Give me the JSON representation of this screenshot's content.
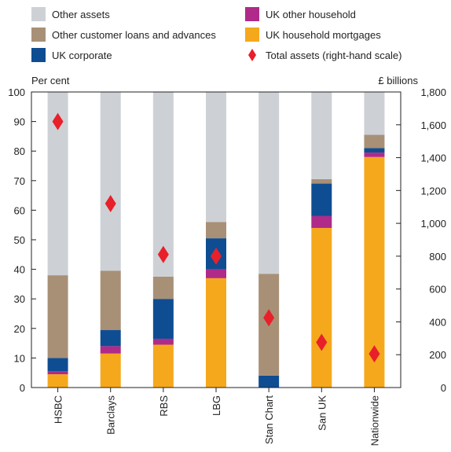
{
  "chart_data": {
    "type": "bar",
    "stacked": true,
    "categories": [
      "HSBC",
      "Barclays",
      "RBS",
      "LBG",
      "Stan Chart",
      "San UK",
      "Nationwide"
    ],
    "series": [
      {
        "name": "UK household mortgages",
        "color": "#f5a81c",
        "values": [
          4.5,
          11.5,
          14.5,
          37,
          0,
          54,
          78
        ]
      },
      {
        "name": "UK other household",
        "color": "#b02a8a",
        "values": [
          1,
          2.5,
          2,
          3,
          0,
          4,
          1.5
        ]
      },
      {
        "name": "UK corporate",
        "color": "#0e4d92",
        "values": [
          4.5,
          5.5,
          13.5,
          10.5,
          4,
          11,
          1.5
        ]
      },
      {
        "name": "Other customer loans and advances",
        "color": "#a89077",
        "values": [
          28,
          20,
          7.5,
          5.5,
          34.5,
          1.5,
          4.5
        ]
      },
      {
        "name": "Other assets",
        "color": "#cdd1d5",
        "values": [
          62,
          60.5,
          62.5,
          44,
          61.5,
          29.5,
          14.5
        ]
      }
    ],
    "total_assets": {
      "name": "Total assets (right-hand scale)",
      "color": "#e8202a",
      "values": [
        1620,
        1120,
        810,
        800,
        425,
        275,
        205
      ]
    },
    "ylabel_left": "Per cent",
    "ylabel_right": "£ billions",
    "ylim_left": [
      0,
      100
    ],
    "ylim_right": [
      0,
      1800
    ],
    "yticks_left": [
      "0",
      "10",
      "20",
      "30",
      "40",
      "50",
      "60",
      "70",
      "80",
      "90",
      "100"
    ],
    "yticks_right": [
      "0",
      "200",
      "400",
      "600",
      "800",
      "1,000",
      "1,200",
      "1,400",
      "1,600",
      "1,800"
    ],
    "legend": [
      {
        "label": "Other assets",
        "color": "#cdd1d5",
        "shape": "square"
      },
      {
        "label": "UK other household",
        "color": "#b02a8a",
        "shape": "square"
      },
      {
        "label": "Other customer loans and advances",
        "color": "#a89077",
        "shape": "square"
      },
      {
        "label": "UK household mortgages",
        "color": "#f5a81c",
        "shape": "square"
      },
      {
        "label": "UK corporate",
        "color": "#0e4d92",
        "shape": "square"
      },
      {
        "label": "Total assets (right-hand scale)",
        "color": "#e8202a",
        "shape": "diamond"
      }
    ]
  }
}
